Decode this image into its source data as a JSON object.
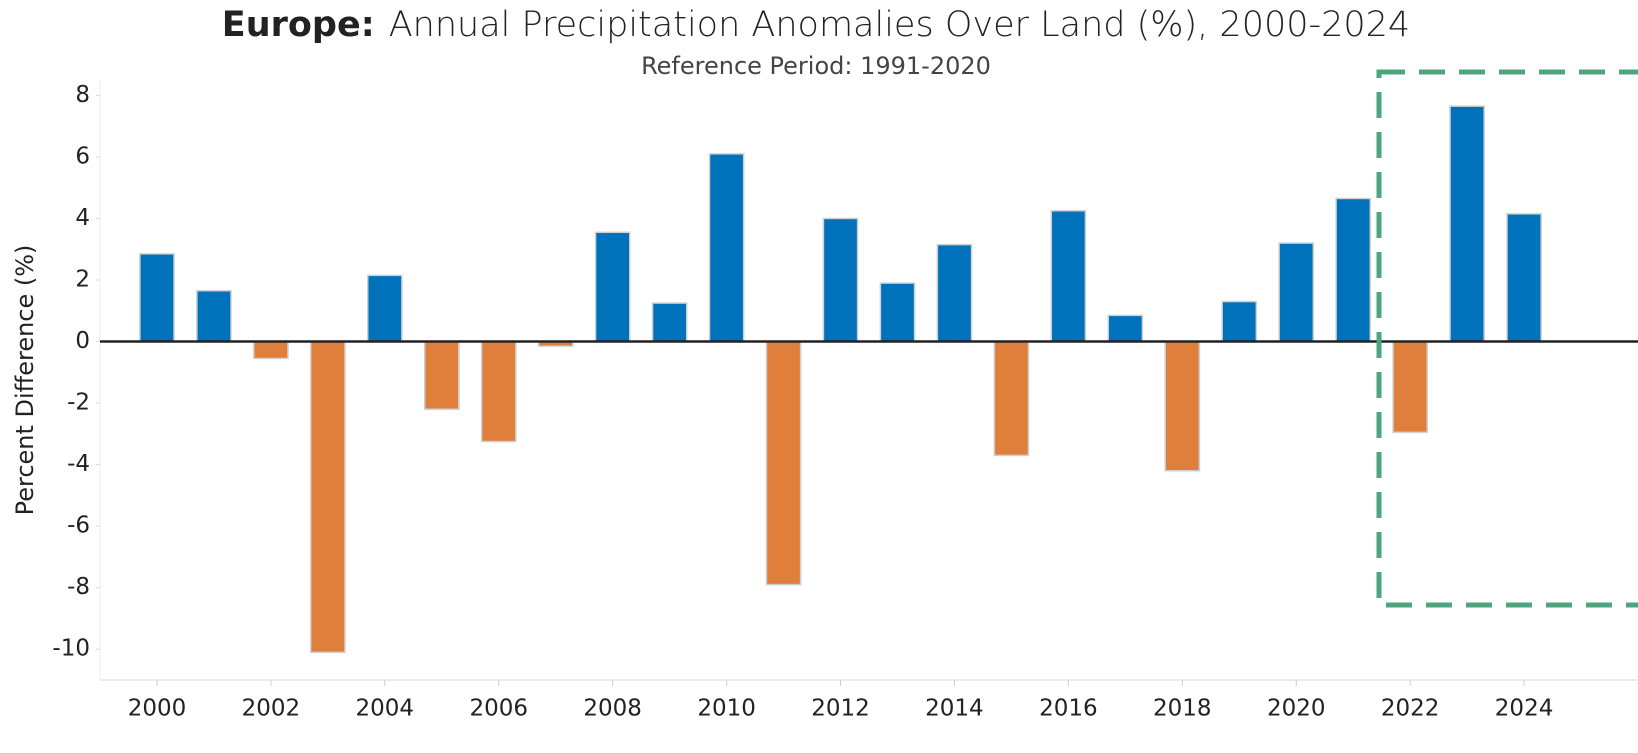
{
  "chart_data": {
    "type": "bar",
    "title_bold": "Europe:",
    "title": "Annual Precipitation Anomalies Over Land (%), 2000-2024",
    "subtitle": "Reference Period: 1991-2020",
    "ylabel": "Percent Difference (%)",
    "x": [
      2000,
      2001,
      2002,
      2003,
      2004,
      2005,
      2006,
      2007,
      2008,
      2009,
      2010,
      2011,
      2012,
      2013,
      2014,
      2015,
      2016,
      2017,
      2018,
      2019,
      2020,
      2021,
      2022,
      2023,
      2024
    ],
    "values": [
      2.85,
      1.65,
      -0.55,
      -10.1,
      2.15,
      -2.2,
      -3.25,
      -0.15,
      3.55,
      1.25,
      6.1,
      -7.9,
      4.0,
      1.9,
      3.15,
      -3.7,
      4.25,
      0.85,
      -4.2,
      1.3,
      3.2,
      4.65,
      -2.95,
      7.65,
      4.15
    ],
    "positive_color": "#0072bb",
    "negative_color": "#e07f3c",
    "xlim": [
      1999,
      2026
    ],
    "xticks": [
      2000,
      2002,
      2004,
      2006,
      2008,
      2010,
      2012,
      2014,
      2016,
      2018,
      2020,
      2022,
      2024
    ],
    "ylim": [
      -11,
      8.5
    ],
    "yticks": [
      8,
      6,
      4,
      2,
      0,
      -2,
      -4,
      -6,
      -8,
      -10
    ],
    "grid": false
  }
}
